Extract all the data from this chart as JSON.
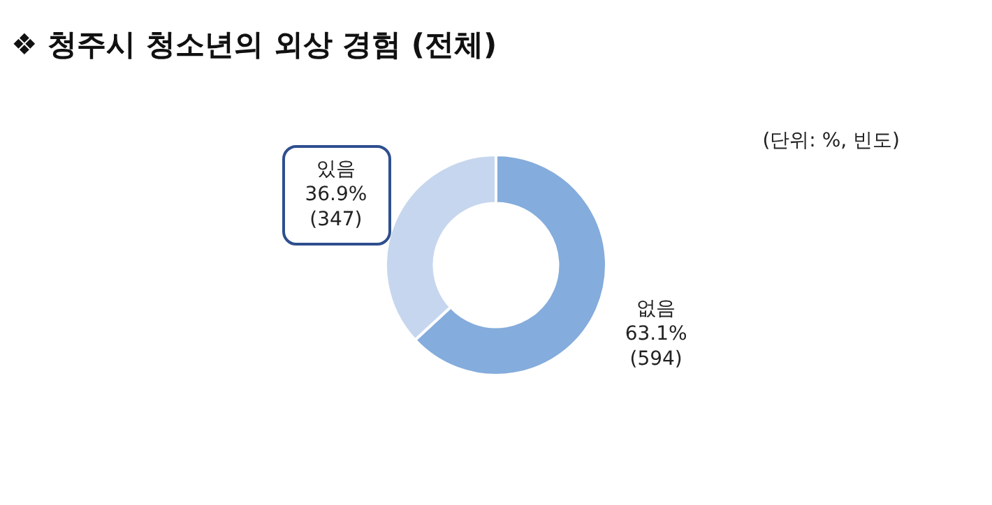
{
  "chart_data": {
    "type": "donut",
    "title": "❖ 청주시 청소년의 외상 경험 (전체)",
    "annotations": [
      "(단위: %, 빈도)"
    ],
    "categories": [
      "없음",
      "있음"
    ],
    "values": [
      63.1,
      36.9
    ],
    "colors": [
      "#84acdc",
      "#c6d6ee"
    ],
    "value_labels": [
      "63.1%\n(594)",
      "36.9%\n(347)"
    ],
    "legend": false
  }
}
